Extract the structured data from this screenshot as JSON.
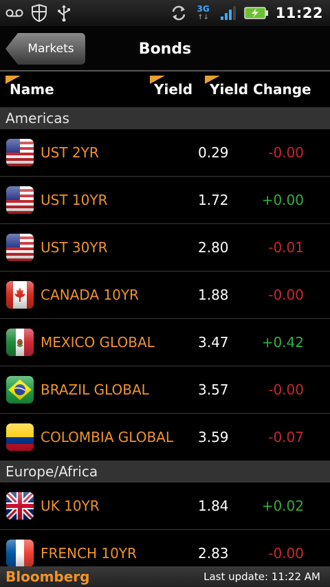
{
  "status_bar": {
    "time": "11:22",
    "network": "3G",
    "icons": [
      "voicemail-icon",
      "shield-icon",
      "usb-icon",
      "sync-icon",
      "network-3g-icon",
      "signal-icon",
      "battery-charging-icon"
    ]
  },
  "header": {
    "back_label": "Markets",
    "title": "Bonds"
  },
  "columns": {
    "name": "Name",
    "yield": "Yield",
    "yield_change": "Yield Change"
  },
  "sections": [
    {
      "title": "Americas",
      "rows": [
        {
          "flag": "us",
          "name": "UST 2YR",
          "yield": "0.29",
          "change": "-0.00",
          "direction": "neg"
        },
        {
          "flag": "us",
          "name": "UST 10YR",
          "yield": "1.72",
          "change": "+0.00",
          "direction": "pos"
        },
        {
          "flag": "us",
          "name": "UST 30YR",
          "yield": "2.80",
          "change": "-0.01",
          "direction": "neg"
        },
        {
          "flag": "ca",
          "name": "CANADA 10YR",
          "yield": "1.88",
          "change": "-0.00",
          "direction": "neg"
        },
        {
          "flag": "mx",
          "name": "MEXICO GLOBAL",
          "yield": "3.47",
          "change": "+0.42",
          "direction": "pos"
        },
        {
          "flag": "br",
          "name": "BRAZIL GLOBAL",
          "yield": "3.57",
          "change": "-0.00",
          "direction": "neg"
        },
        {
          "flag": "co",
          "name": "COLOMBIA GLOBAL",
          "yield": "3.59",
          "change": "-0.07",
          "direction": "neg"
        }
      ]
    },
    {
      "title": "Europe/Africa",
      "rows": [
        {
          "flag": "uk",
          "name": "UK 10YR",
          "yield": "1.84",
          "change": "+0.02",
          "direction": "pos"
        },
        {
          "flag": "fr",
          "name": "FRENCH 10YR",
          "yield": "2.83",
          "change": "-0.00",
          "direction": "neg"
        }
      ]
    }
  ],
  "footer": {
    "brand": "Bloomberg",
    "last_update": "Last update: 11:22 AM"
  },
  "colors": {
    "accent_orange": "#f0942a",
    "negative": "#c8282e",
    "positive": "#30b040"
  }
}
